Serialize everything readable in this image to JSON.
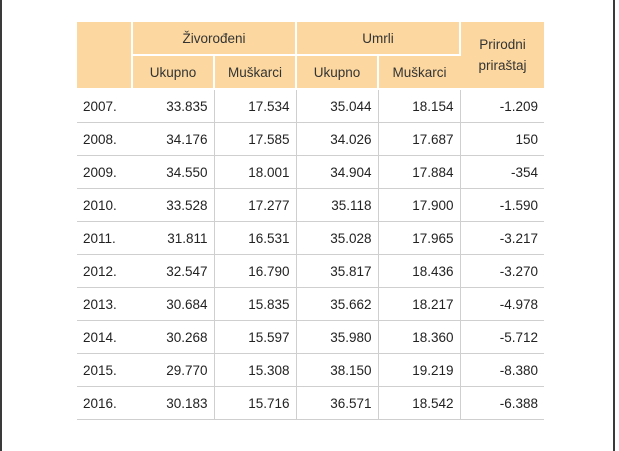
{
  "table": {
    "headers": {
      "group_live_births": "Živorođeni",
      "group_deaths": "Umrli",
      "natural_increase": "Prirodni priraštaj",
      "total": "Ukupno",
      "males": "Muškarci"
    },
    "rows": [
      {
        "year": "2007.",
        "live_total": "33.835",
        "live_males": "17.534",
        "deaths_total": "35.044",
        "deaths_males": "18.154",
        "natural_increase": "-1.209"
      },
      {
        "year": "2008.",
        "live_total": "34.176",
        "live_males": "17.585",
        "deaths_total": "34.026",
        "deaths_males": "17.687",
        "natural_increase": "150"
      },
      {
        "year": "2009.",
        "live_total": "34.550",
        "live_males": "18.001",
        "deaths_total": "34.904",
        "deaths_males": "17.884",
        "natural_increase": "-354"
      },
      {
        "year": "2010.",
        "live_total": "33.528",
        "live_males": "17.277",
        "deaths_total": "35.118",
        "deaths_males": "17.900",
        "natural_increase": "-1.590"
      },
      {
        "year": "2011.",
        "live_total": "31.811",
        "live_males": "16.531",
        "deaths_total": "35.028",
        "deaths_males": "17.965",
        "natural_increase": "-3.217"
      },
      {
        "year": "2012.",
        "live_total": "32.547",
        "live_males": "16.790",
        "deaths_total": "35.817",
        "deaths_males": "18.436",
        "natural_increase": "-3.270"
      },
      {
        "year": "2013.",
        "live_total": "30.684",
        "live_males": "15.835",
        "deaths_total": "35.662",
        "deaths_males": "18.217",
        "natural_increase": "-4.978"
      },
      {
        "year": "2014.",
        "live_total": "30.268",
        "live_males": "15.597",
        "deaths_total": "35.980",
        "deaths_males": "18.360",
        "natural_increase": "-5.712"
      },
      {
        "year": "2015.",
        "live_total": "29.770",
        "live_males": "15.308",
        "deaths_total": "38.150",
        "deaths_males": "19.219",
        "natural_increase": "-8.380"
      },
      {
        "year": "2016.",
        "live_total": "30.183",
        "live_males": "15.716",
        "deaths_total": "36.571",
        "deaths_males": "18.542",
        "natural_increase": "-6.388"
      }
    ]
  },
  "colors": {
    "header_bg": "#fcd8a0",
    "row_divider": "#cfcfcf",
    "text": "#222222"
  }
}
